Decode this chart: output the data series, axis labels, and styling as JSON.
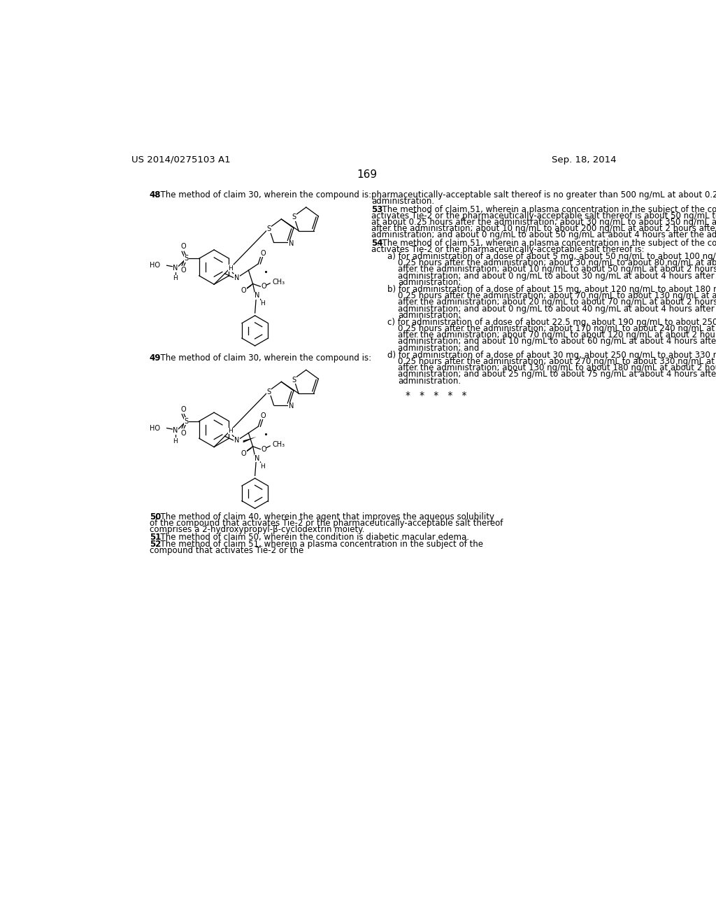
{
  "background_color": "#ffffff",
  "header_left": "US 2014/0275103 A1",
  "header_right": "Sep. 18, 2014",
  "page_number": "169",
  "footer_stars": "*   *   *   *   *"
}
